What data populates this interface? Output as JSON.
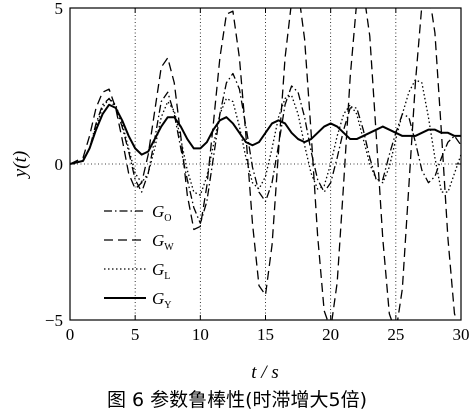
{
  "chart_data": {
    "type": "line",
    "title": "",
    "xlabel": "t / s",
    "ylabel": "y(t)",
    "xlim": [
      0,
      30
    ],
    "ylim": [
      -5,
      5
    ],
    "xticks": [
      "0",
      "5",
      "10",
      "15",
      "20",
      "25",
      "30"
    ],
    "yticks": [
      "−5",
      "0",
      "5"
    ],
    "grid": "dotted vertical lines at x ticks",
    "legend_position": "lower-left",
    "series": [
      {
        "name": "G_O",
        "legend_main": "G",
        "legend_sub": "O",
        "style": "dash-dot",
        "x": [
          0,
          1,
          1.5,
          2,
          2.5,
          3,
          3.5,
          4,
          4.5,
          5,
          5.5,
          6,
          6.5,
          7,
          7.5,
          8,
          8.5,
          9,
          9.5,
          10,
          10.5,
          11,
          11.5,
          12,
          12.5,
          13,
          13.5,
          14,
          14.5,
          15,
          15.5,
          16,
          16.5,
          17,
          17.5,
          18,
          18.5,
          19,
          19.5,
          20,
          20.5,
          21,
          21.5,
          22,
          22.5,
          23,
          23.5,
          24,
          24.5,
          25,
          25.5,
          26,
          26.5,
          27,
          27.5,
          28,
          28.5,
          29,
          29.5,
          30
        ],
        "y": [
          0,
          0.1,
          0.5,
          1.3,
          1.9,
          2.1,
          1.8,
          1.2,
          0.4,
          -0.5,
          -0.9,
          -0.3,
          0.8,
          2.0,
          2.3,
          1.6,
          0.5,
          -0.5,
          -1.4,
          -1.9,
          -1.2,
          0.2,
          1.6,
          2.6,
          2.9,
          2.4,
          1.2,
          -0.1,
          -0.9,
          -1.2,
          -0.6,
          0.6,
          1.9,
          2.5,
          2.3,
          1.5,
          0.4,
          -0.5,
          -0.9,
          -0.6,
          0.2,
          1.1,
          1.8,
          1.8,
          1.1,
          0.2,
          -0.5,
          -0.5,
          0.3,
          1.0,
          1.6,
          1.5,
          0.7,
          -0.2,
          -0.6,
          -0.4,
          0.2,
          0.7,
          0.9,
          0.6
        ]
      },
      {
        "name": "G_W",
        "legend_main": "G",
        "legend_sub": "W",
        "style": "dashed",
        "x": [
          0,
          1,
          1.5,
          2,
          2.5,
          3,
          3.5,
          4,
          4.5,
          5,
          5.5,
          6,
          6.5,
          7,
          7.5,
          8,
          8.5,
          9,
          9.5,
          10,
          10.5,
          11,
          11.5,
          12,
          12.5,
          13,
          13.5,
          14,
          14.5,
          15,
          15.5,
          16,
          16.5,
          17,
          17.5,
          18,
          18.5,
          19,
          19.5,
          20,
          20.5,
          21,
          21.5,
          22,
          22.5,
          23,
          23.5,
          24,
          24.5,
          25,
          25.5,
          26,
          26.5,
          27,
          27.5,
          28,
          28.5,
          29,
          29.5,
          30
        ],
        "y": [
          0,
          0.2,
          0.9,
          1.8,
          2.3,
          2.4,
          1.8,
          0.8,
          -0.3,
          -0.8,
          -0.6,
          0.3,
          1.7,
          3.1,
          3.4,
          2.6,
          0.9,
          -1.0,
          -2.1,
          -2.0,
          -0.7,
          1.3,
          3.4,
          4.8,
          4.9,
          3.4,
          0.9,
          -1.9,
          -3.9,
          -4.2,
          -2.6,
          0.4,
          3.4,
          5.2,
          5.6,
          4.0,
          1.0,
          -2.3,
          -4.7,
          -5.3,
          -3.8,
          -0.6,
          2.8,
          5.2,
          5.6,
          4.1,
          0.9,
          -2.4,
          -4.8,
          -5.4,
          -4.0,
          -0.7,
          2.6,
          5.1,
          5.6,
          4.2,
          1.0,
          -2.4,
          -4.8,
          -5.4
        ]
      },
      {
        "name": "G_L",
        "legend_main": "G",
        "legend_sub": "L",
        "style": "dotted",
        "x": [
          0,
          1,
          1.5,
          2,
          2.5,
          3,
          3.5,
          4,
          4.5,
          5,
          5.5,
          6,
          6.5,
          7,
          7.5,
          8,
          8.5,
          9,
          9.5,
          10,
          10.5,
          11,
          11.5,
          12,
          12.5,
          13,
          13.5,
          14,
          14.5,
          15,
          15.5,
          16,
          16.5,
          17,
          17.5,
          18,
          18.5,
          19,
          19.5,
          20,
          20.5,
          21,
          21.5,
          22,
          22.5,
          23,
          23.5,
          24,
          24.5,
          25,
          25.5,
          26,
          26.5,
          27,
          27.5,
          28,
          28.5,
          29,
          29.5,
          30
        ],
        "y": [
          0,
          0.1,
          0.5,
          1.2,
          1.8,
          2.1,
          1.9,
          1.3,
          0.5,
          -0.3,
          -0.6,
          -0.3,
          0.5,
          1.5,
          2.0,
          1.7,
          0.8,
          -0.2,
          -0.9,
          -1.0,
          -0.4,
          0.6,
          1.6,
          2.1,
          2.0,
          1.2,
          0.2,
          -0.6,
          -0.8,
          -0.4,
          0.5,
          1.5,
          2.1,
          2.2,
          1.6,
          0.6,
          -0.3,
          -0.8,
          -0.7,
          0.0,
          0.9,
          1.6,
          1.9,
          1.6,
          0.8,
          0.0,
          -0.5,
          -0.6,
          -0.1,
          0.8,
          1.6,
          2.3,
          2.7,
          2.6,
          1.5,
          0.2,
          -0.9,
          -0.9,
          -0.3,
          0.3
        ]
      },
      {
        "name": "G_Y",
        "legend_main": "G",
        "legend_sub": "Y",
        "style": "solid",
        "x": [
          0,
          1,
          1.5,
          2,
          2.5,
          3,
          3.5,
          4,
          4.5,
          5,
          5.5,
          6,
          6.5,
          7,
          7.5,
          8,
          8.5,
          9,
          9.5,
          10,
          10.5,
          11,
          11.5,
          12,
          12.5,
          13,
          13.5,
          14,
          14.5,
          15,
          15.5,
          16,
          16.5,
          17,
          17.5,
          18,
          18.5,
          19,
          19.5,
          20,
          20.5,
          21,
          21.5,
          22,
          22.5,
          23,
          23.5,
          24,
          24.5,
          25,
          25.5,
          26,
          26.5,
          27,
          27.5,
          28,
          28.5,
          29,
          29.5,
          30
        ],
        "y": [
          0,
          0.1,
          0.5,
          1.1,
          1.6,
          1.9,
          1.8,
          1.4,
          0.9,
          0.5,
          0.3,
          0.4,
          0.8,
          1.2,
          1.5,
          1.5,
          1.2,
          0.8,
          0.5,
          0.5,
          0.7,
          1.1,
          1.4,
          1.5,
          1.3,
          1.0,
          0.7,
          0.6,
          0.7,
          1.0,
          1.3,
          1.4,
          1.3,
          1.0,
          0.8,
          0.7,
          0.8,
          1.0,
          1.2,
          1.3,
          1.2,
          1.0,
          0.8,
          0.8,
          0.9,
          1.0,
          1.1,
          1.2,
          1.1,
          1.0,
          0.9,
          0.9,
          0.9,
          1.0,
          1.1,
          1.1,
          1.0,
          1.0,
          0.9,
          0.9
        ]
      }
    ]
  },
  "caption": "图 6 参数鲁棒性(时滞增大5倍)"
}
